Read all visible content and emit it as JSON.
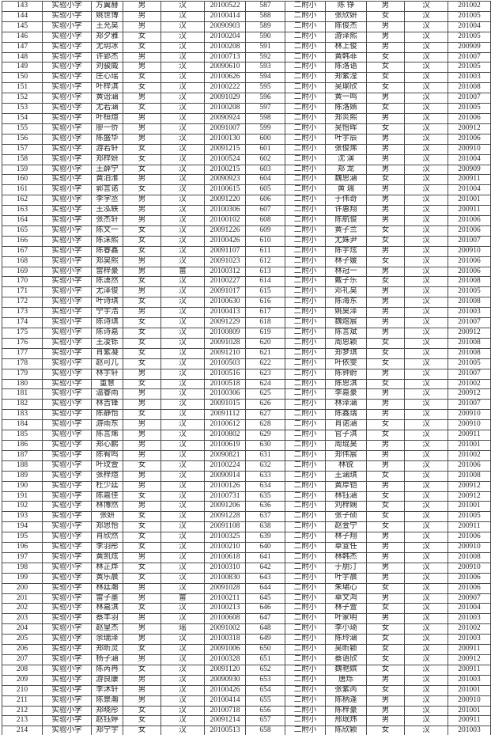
{
  "table": {
    "left_school": "实验小学",
    "right_school": "二附小",
    "first_row_number": "143",
    "last_row_number": "214",
    "first_right_number": "587",
    "last_right_number": "658"
  },
  "columns": [
    "cell-seq-left",
    "cell-school-left",
    "cell-name-left",
    "cell-gender-left",
    "cell-ethnicity-left",
    "cell-birthdate-left",
    "cell-seq-right",
    "cell-school-right",
    "cell-name-right",
    "cell-gender-right",
    "cell-ethnicity-right",
    "cell-birthmonth-right"
  ],
  "rows": [
    [
      "143",
      "实验小学",
      "方翼赫",
      "男",
      "汉",
      "20100522",
      "587",
      "二附小",
      "陈 铮",
      "男",
      "汉",
      "201002"
    ],
    [
      "144",
      "实验小学",
      "姚世博",
      "男",
      "汉",
      "20100414",
      "588",
      "二附小",
      "张欣妍",
      "女",
      "汉",
      "201005"
    ],
    [
      "145",
      "实验小学",
      "王允昊",
      "男",
      "汉",
      "20090903",
      "589",
      "二附小",
      "陈俊杰",
      "男",
      "汉",
      "201004"
    ],
    [
      "146",
      "实验小学",
      "郑夕雅",
      "女",
      "汉",
      "20100204",
      "590",
      "二附小",
      "游泽熙",
      "男",
      "汉",
      "201005"
    ],
    [
      "147",
      "实验小学",
      "尤玥冰",
      "女",
      "汉",
      "20100208",
      "591",
      "二附小",
      "林上俊",
      "男",
      "汉",
      "200909"
    ],
    [
      "148",
      "实验小学",
      "许郢杰",
      "男",
      "汉",
      "20100713",
      "592",
      "二附小",
      "黄韩菲",
      "女",
      "汉",
      "201007"
    ],
    [
      "149",
      "实验小学",
      "刘骏威",
      "男",
      "汉",
      "20090610",
      "593",
      "二附小",
      "陈洛语",
      "女",
      "汉",
      "201005"
    ],
    [
      "150",
      "实验小学",
      "庄心瑶",
      "女",
      "汉",
      "20100626",
      "594",
      "二附小",
      "郑紫滢",
      "女",
      "汉",
      "201003"
    ],
    [
      "151",
      "实验小学",
      "叶梓淇",
      "女",
      "汉",
      "20100222",
      "595",
      "二附小",
      "吴瑜欣",
      "女",
      "汉",
      "201008"
    ],
    [
      "152",
      "实验小学",
      "黄诒涵",
      "男",
      "汉",
      "20091029",
      "596",
      "二附小",
      "黄一鸣",
      "男",
      "汉",
      "201007"
    ],
    [
      "153",
      "实验小学",
      "尤若涵",
      "女",
      "汉",
      "20100208",
      "597",
      "二附小",
      "陈洛嫣",
      "女",
      "汉",
      "201005"
    ],
    [
      "154",
      "实验小学",
      "叶桓煊",
      "男",
      "汉",
      "20090924",
      "598",
      "二附小",
      "郑炎熙",
      "男",
      "汉",
      "201006"
    ],
    [
      "155",
      "实验小学",
      "廖一侨",
      "男",
      "汉",
      "20091007",
      "599",
      "二附小",
      "吴怡晖",
      "女",
      "汉",
      "200912"
    ],
    [
      "156",
      "实验小学",
      "陈盛华",
      "男",
      "汉",
      "20100130",
      "600",
      "二附小",
      "叶宇辰",
      "男",
      "汉",
      "201006"
    ],
    [
      "157",
      "实验小学",
      "游若轩",
      "女",
      "汉",
      "20091215",
      "601",
      "二附小",
      "张俊烯",
      "男",
      "汉",
      "200910"
    ],
    [
      "158",
      "实验小学",
      "郑梓妍",
      "女",
      "汉",
      "20100524",
      "602",
      "二附小",
      "沈 演",
      "男",
      "汉",
      "201004"
    ],
    [
      "159",
      "实验小学",
      "王薛宁",
      "女",
      "汉",
      "20100215",
      "603",
      "二附小",
      "郑 龙",
      "男",
      "汉",
      "200909"
    ],
    [
      "160",
      "实验小学",
      "黄泊淮",
      "男",
      "汉",
      "20090923",
      "604",
      "二附小",
      "魏思涵",
      "女",
      "汉",
      "200911"
    ],
    [
      "161",
      "实验小学",
      "郭言诺",
      "女",
      "汉",
      "20100615",
      "605",
      "二附小",
      "黄 瑞",
      "男",
      "汉",
      "201004"
    ],
    [
      "162",
      "实验小学",
      "李学丞",
      "男",
      "汉",
      "20091220",
      "606",
      "二附小",
      "于伟奇",
      "男",
      "汉",
      "201001"
    ],
    [
      "163",
      "实验小学",
      "王泓轶",
      "男",
      "汉",
      "20100306",
      "607",
      "二附小",
      "许惠翔",
      "男",
      "汉",
      "200911"
    ],
    [
      "164",
      "实验小学",
      "张杰轩",
      "男",
      "汉",
      "20100102",
      "608",
      "二附小",
      "陈航俊",
      "男",
      "汉",
      "201006"
    ],
    [
      "165",
      "实验小学",
      "陈文一",
      "女",
      "汉",
      "20091226",
      "609",
      "二附小",
      "黄子兰",
      "女",
      "汉",
      "201006"
    ],
    [
      "166",
      "实验小学",
      "陈沫熙",
      "女",
      "汉",
      "20100426",
      "610",
      "二附小",
      "尤姝尹",
      "女",
      "汉",
      "201007"
    ],
    [
      "167",
      "实验小学",
      "陈睿鑫",
      "女",
      "汉",
      "20091107",
      "611",
      "二附小",
      "陈宇炫",
      "男",
      "汉",
      "200910"
    ],
    [
      "168",
      "实验小学",
      "郑昊熙",
      "男",
      "汉",
      "20091023",
      "612",
      "二附小",
      "林子媛",
      "女",
      "汉",
      "201006"
    ],
    [
      "169",
      "实验小学",
      "雷梓豪",
      "男",
      "畲",
      "20100312",
      "613",
      "二附小",
      "林冠一",
      "男",
      "汉",
      "201006"
    ],
    [
      "170",
      "实验小学",
      "陈潇然",
      "女",
      "汉",
      "20100227",
      "614",
      "二附小",
      "戴子乐",
      "女",
      "汉",
      "201008"
    ],
    [
      "171",
      "实验小学",
      "尤泽俊",
      "男",
      "汉",
      "20091017",
      "615",
      "二附小",
      "邓礼昊",
      "男",
      "汉",
      "201005"
    ],
    [
      "172",
      "实验小学",
      "叶诗琪",
      "女",
      "汉",
      "20100630",
      "616",
      "二附小",
      "陈海东",
      "男",
      "汉",
      "201008"
    ],
    [
      "173",
      "实验小学",
      "宁宇浩",
      "男",
      "汉",
      "20100413",
      "617",
      "二附小",
      "姚昊泽",
      "男",
      "汉",
      "201003"
    ],
    [
      "174",
      "实验小学",
      "陈诗琪",
      "女",
      "汉",
      "20091229",
      "618",
      "二附小",
      "魏煜宸",
      "男",
      "汉",
      "201007"
    ],
    [
      "175",
      "实验小学",
      "陈诗嘉",
      "女",
      "汉",
      "20100809",
      "619",
      "二附小",
      "陈言斌",
      "男",
      "汉",
      "200912"
    ],
    [
      "176",
      "实验小学",
      "王凌铄",
      "女",
      "汉",
      "20091028",
      "620",
      "二附小",
      "周思颖",
      "女",
      "汉",
      "201008"
    ],
    [
      "177",
      "实验小学",
      "肖紫凝",
      "女",
      "汉",
      "20091210",
      "621",
      "二附小",
      "郑梦琪",
      "女",
      "汉",
      "201008"
    ],
    [
      "178",
      "实验小学",
      "赵可儿",
      "女",
      "汉",
      "20100503",
      "622",
      "二附小",
      "叶依雯",
      "女",
      "汉",
      "201005"
    ],
    [
      "179",
      "实验小学",
      "林宇轩",
      "男",
      "汉",
      "20100516",
      "623",
      "二附小",
      "陈钟蔚",
      "男",
      "汉",
      "201007"
    ],
    [
      "180",
      "实验小学",
      "董慧",
      "女",
      "汉",
      "20100518",
      "624",
      "二附小",
      "陈思淇",
      "女",
      "汉",
      "201002"
    ],
    [
      "181",
      "实验小学",
      "温睿雨",
      "男",
      "汉",
      "20100306",
      "625",
      "二附小",
      "李嘉豪",
      "男",
      "汉",
      "200912"
    ],
    [
      "182",
      "实验小学",
      "林吉锋",
      "男",
      "汉",
      "20091015",
      "626",
      "二附小",
      "林泽涵",
      "男",
      "汉",
      "201007"
    ],
    [
      "183",
      "实验小学",
      "陈静怡",
      "女",
      "汉",
      "20091112",
      "627",
      "二附小",
      "陈鑫瑞",
      "男",
      "汉",
      "200910"
    ],
    [
      "184",
      "实验小学",
      "游雨东",
      "男",
      "汉",
      "20100612",
      "628",
      "二附小",
      "肖诺涵",
      "女",
      "汉",
      "200910"
    ],
    [
      "185",
      "实验小学",
      "陈言烯",
      "男",
      "汉",
      "20100802",
      "629",
      "二附小",
      "官子淇",
      "女",
      "汉",
      "200911"
    ],
    [
      "186",
      "实验小学",
      "郑心鹏",
      "男",
      "汉",
      "20100619",
      "630",
      "二附小",
      "周琨昊",
      "男",
      "汉",
      "201001"
    ],
    [
      "187",
      "实验小学",
      "陈宥鸣",
      "男",
      "汉",
      "20090821",
      "631",
      "二附小",
      "郑伟宸",
      "男",
      "汉",
      "201002"
    ],
    [
      "188",
      "实验小学",
      "叶玟萱",
      "女",
      "汉",
      "20100224",
      "632",
      "二附小",
      "林锐",
      "男",
      "汉",
      "201006"
    ],
    [
      "189",
      "实验小学",
      "张梓煊",
      "男",
      "汉",
      "20090914",
      "633",
      "二附小",
      "王涵琪",
      "女",
      "汉",
      "201008"
    ],
    [
      "190",
      "实验小学",
      "杜少廷",
      "男",
      "汉",
      "20100126",
      "634",
      "二附小",
      "黄厚铠",
      "男",
      "汉",
      "200912"
    ],
    [
      "191",
      "实验小学",
      "陈嘉佳",
      "女",
      "汉",
      "20100731",
      "635",
      "二附小",
      "林钰涵",
      "女",
      "汉",
      "200912"
    ],
    [
      "192",
      "实验小学",
      "林博然",
      "男",
      "汉",
      "20091206",
      "636",
      "二附小",
      "刘梓娴",
      "女",
      "汉",
      "201001"
    ],
    [
      "193",
      "实验小学",
      "张妍",
      "女",
      "汉",
      "20091228",
      "637",
      "二附小",
      "张子硕",
      "女",
      "汉",
      "201005"
    ],
    [
      "194",
      "实验小学",
      "郑思怡",
      "女",
      "汉",
      "20091108",
      "638",
      "二附小",
      "赵萱宁",
      "女",
      "汉",
      "200911"
    ],
    [
      "195",
      "实验小学",
      "肖欣然",
      "女",
      "汉",
      "20100325",
      "639",
      "二附小",
      "林子翔",
      "男",
      "汉",
      "201006"
    ],
    [
      "196",
      "实验小学",
      "李羽彤",
      "女",
      "汉",
      "20100210",
      "640",
      "二附小",
      "卓宣任",
      "男",
      "汉",
      "200910"
    ],
    [
      "197",
      "实验小学",
      "黄凯炫",
      "男",
      "汉",
      "20100618",
      "641",
      "二附小",
      "林韩杰",
      "男",
      "汉",
      "201008"
    ],
    [
      "198",
      "实验小学",
      "林芷烨",
      "女",
      "汉",
      "20100310",
      "642",
      "二附小",
      "于朋汀",
      "男",
      "汉",
      "200910"
    ],
    [
      "199",
      "实验小学",
      "黄乐晨",
      "女",
      "汉",
      "20100830",
      "643",
      "二附小",
      "叶宇晨",
      "男",
      "汉",
      "201006"
    ],
    [
      "200",
      "实验小学",
      "林廷瀚",
      "男",
      "汉",
      "20091028",
      "644",
      "二附小",
      "朱珺心",
      "女",
      "汉",
      "201006"
    ],
    [
      "201",
      "实验小学",
      "雷子墨",
      "男",
      "畲",
      "20100211",
      "645",
      "二附小",
      "卓文鸿",
      "男",
      "汉",
      "200907"
    ],
    [
      "202",
      "实验小学",
      "林嘉淇",
      "女",
      "汉",
      "20100213",
      "646",
      "二附小",
      "林子萱",
      "女",
      "汉",
      "201004"
    ],
    [
      "203",
      "实验小学",
      "蔡丰羽",
      "男",
      "汉",
      "20100608",
      "647",
      "二附小",
      "叶家明",
      "男",
      "汉",
      "201003"
    ],
    [
      "204",
      "实验小学",
      "赵皇杰",
      "男",
      "瑶",
      "20091002",
      "648",
      "二附小",
      "李小琦",
      "女",
      "汉",
      "201002"
    ],
    [
      "205",
      "实验小学",
      "余瑞泽",
      "男",
      "汉",
      "20100318",
      "649",
      "二附小",
      "陈玲涵",
      "女",
      "汉",
      "201003"
    ],
    [
      "206",
      "实验小学",
      "郑昕灵",
      "女",
      "汉",
      "20091006",
      "650",
      "二附小",
      "吴昕颖",
      "女",
      "汉",
      "200911"
    ],
    [
      "207",
      "实验小学",
      "杨子涵",
      "男",
      "汉",
      "20100328",
      "651",
      "二附小",
      "蔡语欣",
      "女",
      "汉",
      "200912"
    ],
    [
      "208",
      "实验小学",
      "陈芮冉",
      "女",
      "汉",
      "20091120",
      "652",
      "二附小",
      "魏艳嫔",
      "女",
      "汉",
      "200911"
    ],
    [
      "209",
      "实验小学",
      "游良康",
      "男",
      "汉",
      "20090930",
      "653",
      "二附小",
      "唐烁",
      "男",
      "汉",
      "201003"
    ],
    [
      "210",
      "实验小学",
      "李沐轩",
      "男",
      "汉",
      "20100426",
      "654",
      "二附小",
      "张紫芮",
      "女",
      "汉",
      "201001"
    ],
    [
      "211",
      "实验小学",
      "陈景瀚",
      "男",
      "汉",
      "20100414",
      "655",
      "二附小",
      "陈柄逢",
      "男",
      "汉",
      "200910"
    ],
    [
      "212",
      "实验小学",
      "郑晓彤",
      "女",
      "汉",
      "20100718",
      "656",
      "二附小",
      "陈梓豪",
      "男",
      "汉",
      "201001"
    ],
    [
      "213",
      "实验小学",
      "赵钰婷",
      "女",
      "汉",
      "20091214",
      "657",
      "二附小",
      "邢珉炜",
      "男",
      "汉",
      "200911"
    ],
    [
      "214",
      "实验小学",
      "郑宁宇",
      "女",
      "汉",
      "20100513",
      "658",
      "二附小",
      "陈欣颖",
      "女",
      "汉",
      "201003"
    ]
  ]
}
